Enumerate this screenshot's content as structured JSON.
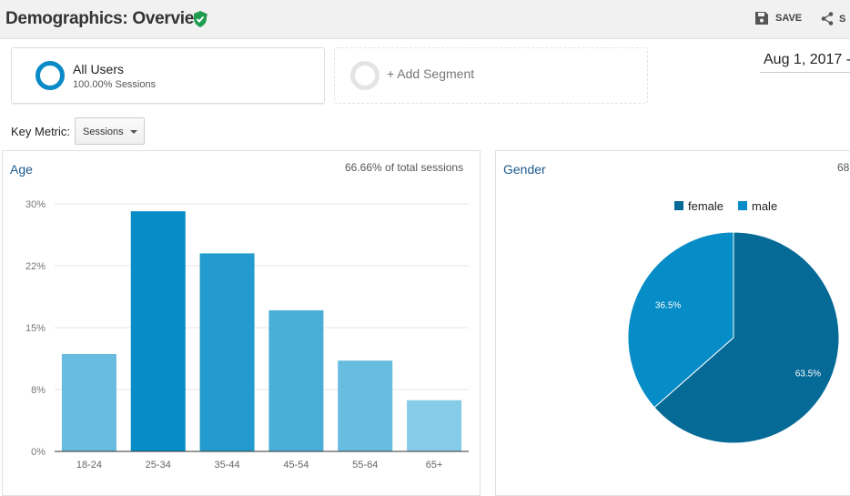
{
  "header": {
    "title": "Demographics: Overview",
    "save_label": "SAVE",
    "share_label": "S"
  },
  "segments": [
    {
      "name": "All Users",
      "subtitle": "100.00% Sessions"
    },
    {
      "name": "+ Add Segment"
    }
  ],
  "date_range": "Aug 1, 2017 -",
  "key_metric": {
    "label": "Key Metric:",
    "value": "Sessions"
  },
  "age_panel": {
    "title": "Age",
    "note": "66.66% of total sessions"
  },
  "gender_panel": {
    "title": "Gender",
    "note": "68"
  },
  "chart_data": [
    {
      "type": "bar",
      "categories": [
        "18-24",
        "25-34",
        "35-44",
        "45-54",
        "55-64",
        "65+"
      ],
      "values": [
        11.8,
        29.1,
        24.0,
        17.1,
        11.0,
        6.2
      ],
      "ylim": [
        0,
        30
      ],
      "yticks": [
        "0%",
        "8%",
        "15%",
        "22%",
        "30%"
      ],
      "ytick_values": [
        0,
        7.5,
        15,
        22.5,
        30
      ],
      "grid": true,
      "colors": [
        "#67bce0",
        "#068cc6",
        "#239bce",
        "#4aaed8",
        "#67bce0",
        "#86cbe7"
      ]
    },
    {
      "type": "pie",
      "labels": [
        "female",
        "male"
      ],
      "values": [
        63.5,
        36.5
      ],
      "data_labels": [
        "63.5%",
        "36.5%"
      ],
      "colors": [
        "#056a96",
        "#068cc6"
      ],
      "legend": "top"
    }
  ]
}
